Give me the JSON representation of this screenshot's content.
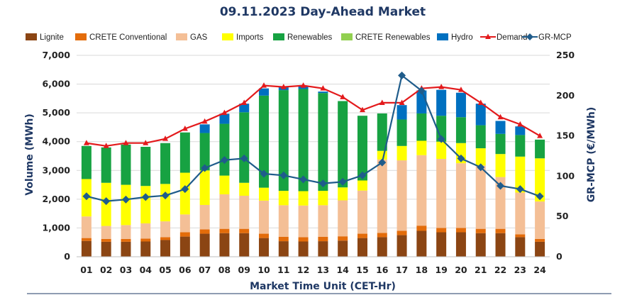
{
  "chart_data": {
    "type": "bar",
    "title": "09.11.2023  Day-Ahead Market",
    "xlabel": "Market Time Unit (CET-Hr)",
    "ylabel": "Volume (MWh)",
    "y2label": "GR-MCP (€/MWh)",
    "ylim": [
      0,
      7000
    ],
    "y2lim": [
      0,
      250
    ],
    "yticks": [
      "0",
      "1,000",
      "2,000",
      "3,000",
      "4,000",
      "5,000",
      "6,000",
      "7,000"
    ],
    "y2ticks": [
      "0",
      "50",
      "100",
      "150",
      "200",
      "250"
    ],
    "grid": true,
    "legend_position": "top",
    "categories": [
      "01",
      "02",
      "03",
      "04",
      "05",
      "06",
      "07",
      "08",
      "09",
      "10",
      "11",
      "12",
      "13",
      "14",
      "15",
      "16",
      "17",
      "18",
      "19",
      "20",
      "21",
      "22",
      "23",
      "24"
    ],
    "series": [
      {
        "name": "Lignite",
        "kind": "bar",
        "color": "#8b4513",
        "values": [
          550,
          520,
          520,
          530,
          580,
          700,
          800,
          820,
          820,
          650,
          540,
          530,
          540,
          560,
          650,
          680,
          750,
          900,
          850,
          850,
          820,
          820,
          680,
          520
        ]
      },
      {
        "name": "CRETE Conventional",
        "kind": "bar",
        "color": "#e36c0a",
        "values": [
          100,
          100,
          100,
          100,
          100,
          150,
          150,
          150,
          150,
          150,
          150,
          150,
          150,
          150,
          150,
          150,
          150,
          180,
          150,
          150,
          150,
          150,
          100,
          100
        ]
      },
      {
        "name": "GAS",
        "kind": "bar",
        "color": "#f4bf96",
        "values": [
          750,
          450,
          480,
          530,
          550,
          620,
          850,
          1200,
          1150,
          1150,
          1100,
          1100,
          1100,
          1250,
          1500,
          2550,
          2450,
          2450,
          2400,
          2250,
          2200,
          1800,
          1450,
          1300
        ]
      },
      {
        "name": "Imports",
        "kind": "bar",
        "color": "#ffff00",
        "values": [
          1300,
          1500,
          1400,
          1300,
          1300,
          1450,
          1200,
          650,
          450,
          450,
          500,
          500,
          500,
          450,
          350,
          300,
          500,
          500,
          600,
          700,
          600,
          800,
          1250,
          1500
        ]
      },
      {
        "name": "Renewables",
        "kind": "bar",
        "color": "#17a242",
        "values": [
          1150,
          1230,
          1400,
          1360,
          1420,
          1400,
          1300,
          1800,
          2450,
          3200,
          3500,
          3550,
          3400,
          3000,
          2250,
          1300,
          920,
          950,
          900,
          900,
          800,
          700,
          750,
          650
        ]
      },
      {
        "name": "CRETE Renewables",
        "kind": "bar",
        "color": "#92d050",
        "values": [
          0,
          0,
          0,
          0,
          0,
          0,
          0,
          0,
          0,
          0,
          0,
          0,
          0,
          0,
          0,
          0,
          0,
          0,
          0,
          0,
          0,
          0,
          0,
          0
        ]
      },
      {
        "name": "Hydro",
        "kind": "bar",
        "color": "#0070c0",
        "values": [
          0,
          0,
          0,
          0,
          0,
          0,
          300,
          350,
          300,
          250,
          100,
          100,
          50,
          0,
          0,
          0,
          500,
          800,
          900,
          850,
          750,
          450,
          300,
          0
        ]
      },
      {
        "name": "Demand",
        "kind": "line",
        "color": "#e31a1c",
        "axis": "left",
        "values": [
          3950,
          3850,
          3950,
          3950,
          4100,
          4450,
          4700,
          5000,
          5350,
          5950,
          5900,
          5950,
          5850,
          5550,
          5100,
          5350,
          5350,
          5850,
          5900,
          5800,
          5350,
          4850,
          4600,
          4200
        ]
      },
      {
        "name": "GR-MCP",
        "kind": "line",
        "color": "#1f5c8b",
        "axis": "right",
        "values": [
          75,
          69,
          71,
          74,
          76,
          84,
          110,
          120,
          122,
          103,
          101,
          96,
          91,
          93,
          101,
          117,
          225,
          206,
          146,
          122,
          111,
          88,
          84,
          75
        ]
      }
    ]
  }
}
